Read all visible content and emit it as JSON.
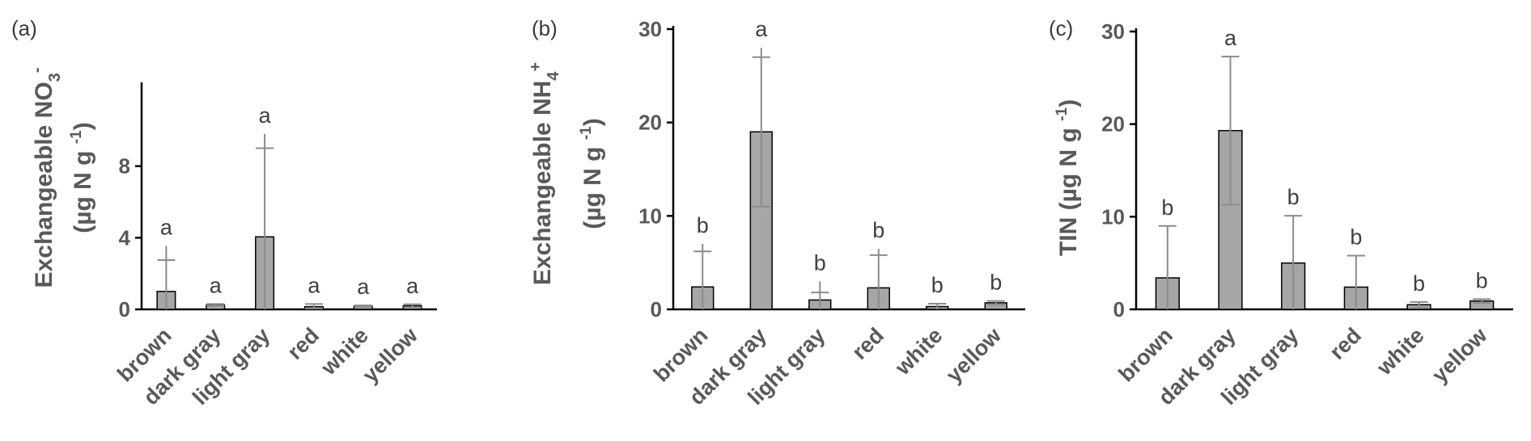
{
  "chart_data": [
    {
      "type": "bar",
      "panel_label": "(a)",
      "ylabel_lines": [
        "Exchangeable NO",
        "(µg N g )"
      ],
      "ylabel_text": "Exchangeable NO3- (µg N g-1)",
      "categories": [
        "brown",
        "dark gray",
        "light gray",
        "red",
        "white",
        "yellow"
      ],
      "values": [
        1.0,
        0.25,
        4.05,
        0.15,
        0.18,
        0.2
      ],
      "error_upper": [
        3.55,
        0.3,
        9.8,
        0.3,
        0.22,
        0.28
      ],
      "error_lower": [
        0,
        0.2,
        0,
        0.05,
        0.14,
        0.12
      ],
      "error_cap_upper": [
        2.75,
        0.3,
        9.0,
        0.3,
        0.22,
        0.28
      ],
      "significance": [
        "a",
        "a",
        "a",
        "a",
        "a",
        "a"
      ],
      "yticks": [
        "0",
        "4",
        "8"
      ],
      "ylim": [
        0,
        12.5
      ]
    },
    {
      "type": "bar",
      "panel_label": "(b)",
      "ylabel_lines": [
        "Exchangeable NH",
        "(µg N g )"
      ],
      "ylabel_text": "Exchangeable NH4+ (µg N g-1)",
      "categories": [
        "brown",
        "dark gray",
        "light gray",
        "red",
        "white",
        "yellow"
      ],
      "values": [
        2.4,
        19.0,
        1.0,
        2.3,
        0.3,
        0.7
      ],
      "error_upper": [
        7.0,
        28.0,
        3.0,
        6.5,
        0.6,
        0.9
      ],
      "error_lower": [
        0,
        11.0,
        0,
        0,
        0,
        0.5
      ],
      "error_cap_upper": [
        6.2,
        27.0,
        1.8,
        5.8,
        0.6,
        0.9
      ],
      "significance": [
        "b",
        "a",
        "b",
        "b",
        "b",
        "b"
      ],
      "yticks": [
        "0",
        "10",
        "20",
        "30"
      ],
      "ylim": [
        0,
        30
      ]
    },
    {
      "type": "bar",
      "panel_label": "(c)",
      "ylabel_lines": [
        "TIN (µg N g )"
      ],
      "ylabel_text": "TIN (µg N g-1)",
      "categories": [
        "brown",
        "dark gray",
        "light gray",
        "red",
        "white",
        "yellow"
      ],
      "values": [
        3.4,
        19.3,
        5.0,
        2.4,
        0.5,
        0.9
      ],
      "error_upper": [
        9.0,
        27.3,
        10.1,
        5.8,
        0.8,
        1.1
      ],
      "error_lower": [
        0,
        11.3,
        0,
        0,
        0.2,
        0.7
      ],
      "error_cap_upper": [
        9.0,
        27.3,
        10.1,
        5.8,
        0.8,
        1.1
      ],
      "significance": [
        "b",
        "a",
        "b",
        "b",
        "b",
        "b"
      ],
      "yticks": [
        "0",
        "10",
        "20",
        "30"
      ],
      "ylim": [
        0,
        30
      ]
    }
  ]
}
